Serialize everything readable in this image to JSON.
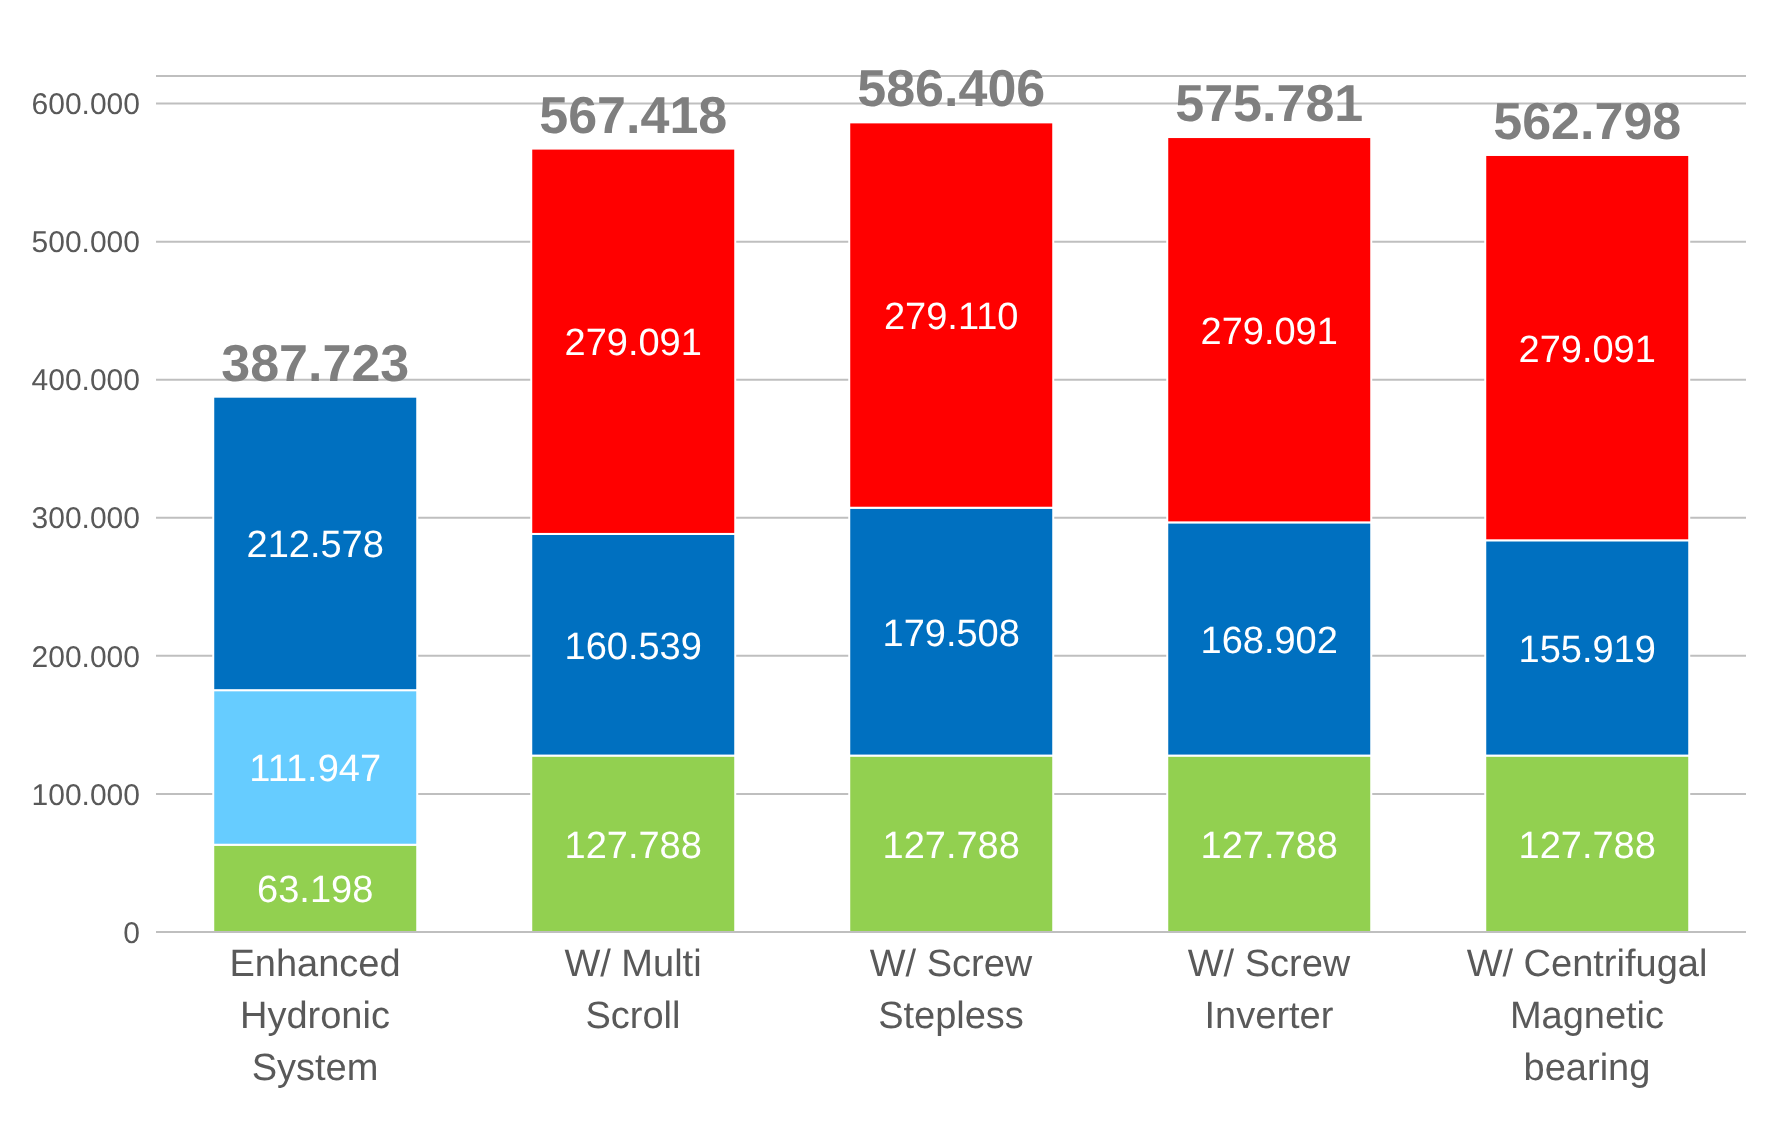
{
  "chart_data": {
    "type": "bar",
    "stacked": true,
    "categories": [
      "Enhanced Hydronic System",
      "W/ Multi Scroll",
      "W/ Screw Stepless",
      "W/ Screw Inverter",
      "W/ Centrifugal Magnetic bearing"
    ],
    "series": [
      {
        "color": "#92d050",
        "values": [
          63198,
          127788,
          127788,
          127788,
          127788
        ],
        "value_labels": [
          "63.198",
          "127.788",
          "127.788",
          "127.788",
          "127.788"
        ]
      },
      {
        "color": "#66ccff",
        "values": [
          111947,
          null,
          null,
          null,
          null
        ],
        "value_labels": [
          "111.947",
          null,
          null,
          null,
          null
        ]
      },
      {
        "color": "#0070c0",
        "values": [
          212578,
          160539,
          179508,
          168902,
          155919
        ],
        "value_labels": [
          "212.578",
          "160.539",
          "179.508",
          "168.902",
          "155.919"
        ]
      },
      {
        "color": "#ff0000",
        "values": [
          null,
          279091,
          279110,
          279091,
          279091
        ],
        "value_labels": [
          null,
          "279.091",
          "279.110",
          "279.091",
          "279.091"
        ]
      }
    ],
    "totals": [
      "387.723",
      "567.418",
      "586.406",
      "575.781",
      "562.798"
    ],
    "ylim": [
      0,
      620000
    ],
    "yticks": [
      {
        "value": 0,
        "label": "0"
      },
      {
        "value": 100000,
        "label": "100.000"
      },
      {
        "value": 200000,
        "label": "200.000"
      },
      {
        "value": 300000,
        "label": "300.000"
      },
      {
        "value": 400000,
        "label": "400.000"
      },
      {
        "value": 500000,
        "label": "500.000"
      },
      {
        "value": 600000,
        "label": "600.000"
      }
    ],
    "grid": "y",
    "legend": false
  }
}
